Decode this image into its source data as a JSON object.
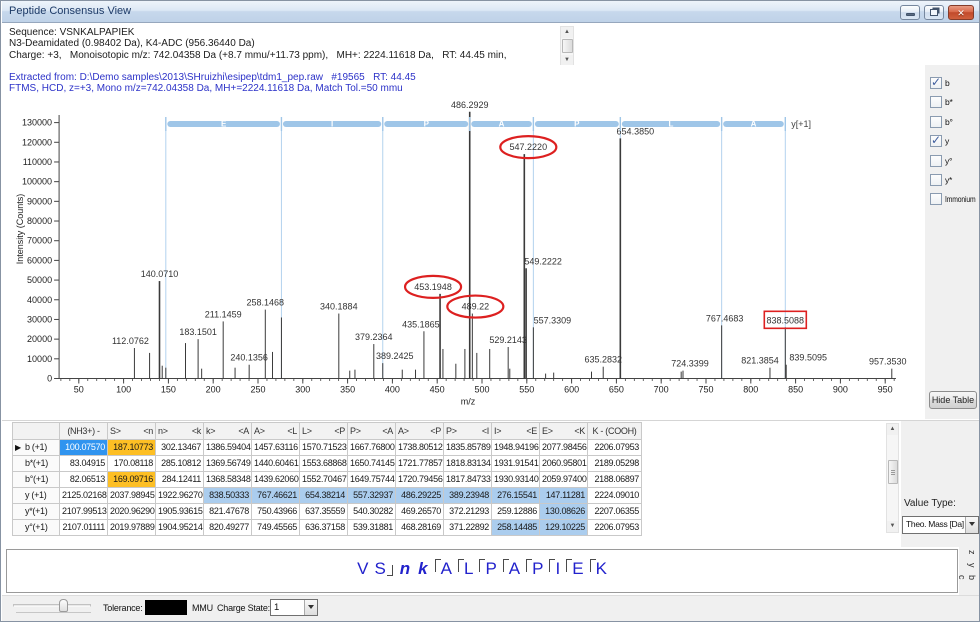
{
  "window": {
    "title": "Peptide Consensus View",
    "buttons": {
      "minimize": "minimize",
      "restore": "restore",
      "close": "close"
    }
  },
  "header_info": {
    "line1": "Sequence: VSNKALPAPIEK",
    "line2": "N3-Deamidated (0.98402 Da), K4-ADC (956.36440 Da)",
    "line3": "Charge: +3,   Monoisotopic m/z: 742.04358 Da (+8.7 mmu/+11.73 ppm),   MH+: 2224.11618 Da,   RT: 44.45 min,"
  },
  "extracted_info": {
    "line1": "Extracted from: D:\\Demo samples\\2013\\SHruizhi\\esipep\\tdm1_pep.raw   #19565   RT: 44.45",
    "line2": "FTMS, HCD, z=+3, Mono m/z=742.04358 Da, MH+=2224.11618 Da, Match Tol.=50 mmu"
  },
  "ion_checkboxes": [
    {
      "label": "b",
      "checked": true
    },
    {
      "label": "b*",
      "checked": false
    },
    {
      "label": "b°",
      "checked": false
    },
    {
      "label": "y",
      "checked": true
    },
    {
      "label": "y°",
      "checked": false
    },
    {
      "label": "y*",
      "checked": false
    },
    {
      "label": "Immonium",
      "checked": false
    }
  ],
  "hide_table_label": "Hide Table",
  "chart_data": {
    "type": "bar",
    "subtype": "mass-spectrum-sticks",
    "title": "",
    "xlabel": "m/z",
    "ylabel": "Intensity (Counts)",
    "xlim": [
      28,
      962
    ],
    "ylim": [
      0,
      130000
    ],
    "x_ticks": [
      50,
      100,
      150,
      200,
      250,
      300,
      350,
      400,
      450,
      500,
      550,
      600,
      650,
      700,
      750,
      800,
      850,
      900,
      950
    ],
    "x_minor_tick_step": 10,
    "y_ticks": [
      0,
      10000,
      20000,
      30000,
      40000,
      50000,
      60000,
      70000,
      80000,
      90000,
      100000,
      110000,
      120000,
      130000
    ],
    "grid": false,
    "peak_color": "#3a3a3a",
    "annotation_color": "#dd2020",
    "match_color": "#b3d2ee",
    "peaks": [
      {
        "mz": 112.0762,
        "intensity": 15500,
        "label": "112.0762",
        "label_dx": -4
      },
      {
        "mz": 129.0,
        "intensity": 13000
      },
      {
        "mz": 140.071,
        "intensity": 49500,
        "label": "140.0710"
      },
      {
        "mz": 143.1,
        "intensity": 6500
      },
      {
        "mz": 147.11,
        "intensity": 5500
      },
      {
        "mz": 169.1,
        "intensity": 18000
      },
      {
        "mz": 183.1501,
        "intensity": 20000,
        "label": "183.1501"
      },
      {
        "mz": 187.11,
        "intensity": 5000
      },
      {
        "mz": 211.1459,
        "intensity": 29000,
        "label": "211.1459"
      },
      {
        "mz": 224.4,
        "intensity": 5500
      },
      {
        "mz": 240.1356,
        "intensity": 7000,
        "label": "240.1356"
      },
      {
        "mz": 258.1468,
        "intensity": 35000,
        "label": "258.1468"
      },
      {
        "mz": 266.2,
        "intensity": 13500
      },
      {
        "mz": 276.16,
        "intensity": 31000
      },
      {
        "mz": 340.1884,
        "intensity": 33000,
        "label": "340.1884"
      },
      {
        "mz": 352.4,
        "intensity": 4000
      },
      {
        "mz": 358.2,
        "intensity": 4500
      },
      {
        "mz": 379.2364,
        "intensity": 17500,
        "label": "379.2364"
      },
      {
        "mz": 389.2425,
        "intensity": 7800,
        "label": "389.2425",
        "label_dx": 12
      },
      {
        "mz": 411.0,
        "intensity": 4500
      },
      {
        "mz": 425.8,
        "intensity": 4500
      },
      {
        "mz": 435.1865,
        "intensity": 24000,
        "label": "435.1865",
        "label_dx": -3
      },
      {
        "mz": 453.1948,
        "intensity": 43000,
        "label": "453.1948",
        "label_dx": -7,
        "annotation": "circle"
      },
      {
        "mz": 456.4,
        "intensity": 15000
      },
      {
        "mz": 470.8,
        "intensity": 7500
      },
      {
        "mz": 480.9,
        "intensity": 15000
      },
      {
        "mz": 486.2929,
        "intensity": 135500,
        "label": "486.2929"
      },
      {
        "mz": 489.22,
        "intensity": 33000,
        "label": "489.22",
        "label_dx": 3,
        "annotation": "circle"
      },
      {
        "mz": 494.2,
        "intensity": 13000
      },
      {
        "mz": 508.6,
        "intensity": 15000
      },
      {
        "mz": 529.2143,
        "intensity": 16000,
        "label": "529.2143"
      },
      {
        "mz": 531.0,
        "intensity": 5000
      },
      {
        "mz": 547.222,
        "intensity": 114000,
        "label": "547.2220",
        "label_dx": 4,
        "annotation": "circle"
      },
      {
        "mz": 549.2222,
        "intensity": 56000,
        "label": "549.2222",
        "label_dx": 17
      },
      {
        "mz": 557.3309,
        "intensity": 26000,
        "label": "557.3309",
        "label_dx": 19
      },
      {
        "mz": 571.0,
        "intensity": 2500
      },
      {
        "mz": 580.0,
        "intensity": 3000
      },
      {
        "mz": 622.2,
        "intensity": 3500
      },
      {
        "mz": 635.2832,
        "intensity": 6000,
        "label": "635.2832"
      },
      {
        "mz": 654.385,
        "intensity": 122000,
        "label": "654.3850",
        "label_dx": 15
      },
      {
        "mz": 722.3,
        "intensity": 3500
      },
      {
        "mz": 724.3399,
        "intensity": 4000,
        "label": "724.3399",
        "label_dx": 7
      },
      {
        "mz": 767.4683,
        "intensity": 27000,
        "label": "767.4683",
        "label_dx": 3
      },
      {
        "mz": 821.3854,
        "intensity": 5500,
        "label": "821.3854",
        "label_dx": -10
      },
      {
        "mz": 838.5088,
        "intensity": 26000,
        "label": "838.5088",
        "annotation": "rect"
      },
      {
        "mz": 839.5095,
        "intensity": 7000,
        "label": "839.5095",
        "label_dx": 22
      },
      {
        "mz": 957.353,
        "intensity": 5000,
        "label": "957.3530",
        "label_dx": -4
      }
    ],
    "y_ion_bracket": {
      "series_label": "y[+1]",
      "ion_mz": [
        147.11281,
        276.15541,
        389.23948,
        486.29225,
        557.32937,
        654.38214,
        767.46621,
        838.50333
      ],
      "residue_letters": [
        "E",
        "I",
        "P",
        "A",
        "P",
        "L",
        "A"
      ]
    }
  },
  "fragment_table": {
    "corner": "",
    "columns": [
      {
        "left": "(NH3+) -",
        "right": ""
      },
      {
        "left": "S>",
        "right": "<n"
      },
      {
        "left": "n>",
        "right": "<k"
      },
      {
        "left": "k>",
        "right": "<A"
      },
      {
        "left": "A>",
        "right": "<L"
      },
      {
        "left": "L>",
        "right": "<P"
      },
      {
        "left": "P>",
        "right": "<A"
      },
      {
        "left": "A>",
        "right": "<P"
      },
      {
        "left": "P>",
        "right": "<I"
      },
      {
        "left": "I>",
        "right": "<E"
      },
      {
        "left": "E>",
        "right": "<K"
      },
      {
        "left": "K - (COOH)",
        "right": ""
      }
    ],
    "rows": [
      {
        "label": "b (+1)",
        "marker": "▶",
        "values": [
          "100.07570",
          "187.10773",
          "302.13467",
          "1386.59404",
          "1457.63116",
          "1570.71523",
          "1667.76800",
          "1738.80512",
          "1835.85789",
          "1948.94196",
          "2077.98456",
          "2206.07953"
        ],
        "highlights": {
          "0": "sel",
          "1": "org"
        }
      },
      {
        "label": "b*(+1)",
        "marker": "",
        "values": [
          "83.04915",
          "170.08118",
          "285.10812",
          "1369.56749",
          "1440.60461",
          "1553.68868",
          "1650.74145",
          "1721.77857",
          "1818.83134",
          "1931.91541",
          "2060.95801",
          "2189.05298"
        ],
        "highlights": {}
      },
      {
        "label": "b°(+1)",
        "marker": "",
        "values": [
          "82.06513",
          "169.09716",
          "284.12411",
          "1368.58348",
          "1439.62060",
          "1552.70467",
          "1649.75744",
          "1720.79456",
          "1817.84733",
          "1930.93140",
          "2059.97400",
          "2188.06897"
        ],
        "highlights": {
          "1": "org"
        }
      },
      {
        "label": "y (+1)",
        "marker": "",
        "values": [
          "2125.02168",
          "2037.98945",
          "1922.96270",
          "838.50333",
          "767.46621",
          "654.38214",
          "557.32937",
          "486.29225",
          "389.23948",
          "276.15541",
          "147.11281",
          "2224.09010"
        ],
        "highlights": {
          "3": "blu",
          "4": "blu",
          "5": "blu",
          "6": "blu",
          "7": "blu",
          "8": "blu",
          "9": "blu",
          "10": "blu"
        }
      },
      {
        "label": "y*(+1)",
        "marker": "",
        "values": [
          "2107.99513",
          "2020.96290",
          "1905.93615",
          "821.47678",
          "750.43966",
          "637.35559",
          "540.30282",
          "469.26570",
          "372.21293",
          "259.12886",
          "130.08626",
          "2207.06355"
        ],
        "highlights": {
          "10": "blu"
        }
      },
      {
        "label": "y°(+1)",
        "marker": "",
        "values": [
          "2107.01111",
          "2019.97889",
          "1904.95214",
          "820.49277",
          "749.45565",
          "636.37158",
          "539.31881",
          "468.28169",
          "371.22892",
          "258.14485",
          "129.10225",
          "2206.07953"
        ],
        "highlights": {
          "9": "blu",
          "10": "blu"
        }
      }
    ]
  },
  "value_type": {
    "label": "Value Type:",
    "value": "Theo. Mass [Da]"
  },
  "sequence_view": {
    "residues": [
      {
        "letter": "V"
      },
      {
        "letter": "S",
        "b_marker": true
      },
      {
        "letter": "n",
        "modified": true
      },
      {
        "letter": "k",
        "modified": true
      },
      {
        "letter": "A",
        "y_marker": true
      },
      {
        "letter": "L",
        "y_marker": true
      },
      {
        "letter": "P",
        "y_marker": true
      },
      {
        "letter": "A",
        "y_marker": true
      },
      {
        "letter": "P",
        "y_marker": true
      },
      {
        "letter": "I",
        "y_marker": true
      },
      {
        "letter": "E",
        "y_marker": true
      },
      {
        "letter": "K",
        "y_marker": true
      }
    ],
    "right_labels_top": "z y",
    "right_labels_bottom": "b c"
  },
  "bottom_bar": {
    "tolerance_label": "Tolerance:",
    "unit_label": "MMU",
    "charge_label": "Charge State:",
    "charge_value": "1"
  }
}
